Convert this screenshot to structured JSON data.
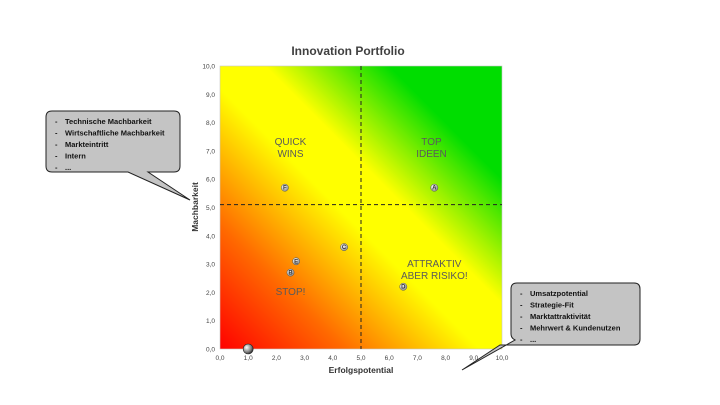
{
  "chart_data": {
    "type": "scatter",
    "title": "Innovation Portfolio",
    "xlabel": "Erfolgspotential",
    "ylabel": "Machbarkeit",
    "xlim": [
      0,
      10
    ],
    "ylim": [
      0,
      10
    ],
    "x_ticks": [
      "0,0",
      "1,0",
      "2,0",
      "3,0",
      "4,0",
      "5,0",
      "6,0",
      "7,0",
      "8,0",
      "9,0",
      "10,0"
    ],
    "y_ticks": [
      "0,0",
      "1,0",
      "2,0",
      "3,0",
      "4,0",
      "5,0",
      "6,0",
      "7,0",
      "8,0",
      "9,0",
      "10,0"
    ],
    "dividers": {
      "x": 5.0,
      "y": 5.1
    },
    "background": "diagonal gradient red (bottom-left) to yellow to green (top-right)",
    "colors": {
      "red": "#ff0000",
      "yellow": "#ffff00",
      "green": "#00dd00"
    },
    "points": [
      {
        "label": "A",
        "x": 7.6,
        "y": 5.7
      },
      {
        "label": "B",
        "x": 2.5,
        "y": 2.7
      },
      {
        "label": "C",
        "x": 4.4,
        "y": 3.6
      },
      {
        "label": "D",
        "x": 6.5,
        "y": 2.2
      },
      {
        "label": "E",
        "x": 2.7,
        "y": 3.1
      },
      {
        "label": "F",
        "x": 2.3,
        "y": 5.7
      },
      {
        "label": "",
        "x": 1.0,
        "y": 0.0
      }
    ],
    "zones": [
      {
        "text": "QUICK\nWINS",
        "x": 2.5,
        "y": 7.2
      },
      {
        "text": "TOP\nIDEEN",
        "x": 7.5,
        "y": 7.2
      },
      {
        "text": "ATTRAKTIV\nABER RISIKO!",
        "x": 7.6,
        "y": 2.9
      },
      {
        "text": "STOP!",
        "x": 2.5,
        "y": 1.9
      }
    ]
  },
  "callouts": {
    "left": {
      "items": [
        "Technische Machbarkeit",
        "Wirtschaftliche Machbarkeit",
        "Markteintritt",
        "Intern",
        "..."
      ]
    },
    "right": {
      "items": [
        "Umsatzpotential",
        "Strategie-Fit",
        "Marktattraktivität",
        "Mehrwert & Kundenutzen",
        "..."
      ]
    }
  }
}
